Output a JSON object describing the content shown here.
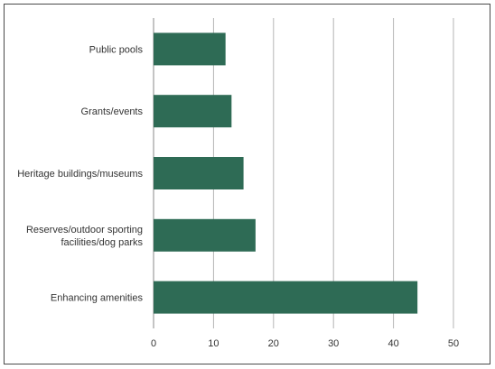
{
  "chart_data": {
    "type": "bar",
    "orientation": "horizontal",
    "categories": [
      [
        "Public pools"
      ],
      [
        "Grants/events"
      ],
      [
        "Heritage buildings/museums"
      ],
      [
        "Reserves/outdoor sporting",
        "facilities/dog parks"
      ],
      [
        "Enhancing amenities"
      ]
    ],
    "values": [
      12,
      13,
      15,
      17,
      44
    ],
    "xlim": [
      0,
      50
    ],
    "xticks": [
      0,
      10,
      20,
      30,
      40,
      50
    ],
    "grid": true,
    "bar_color": "#2e6b55",
    "grid_color": "#b5b5b5"
  }
}
